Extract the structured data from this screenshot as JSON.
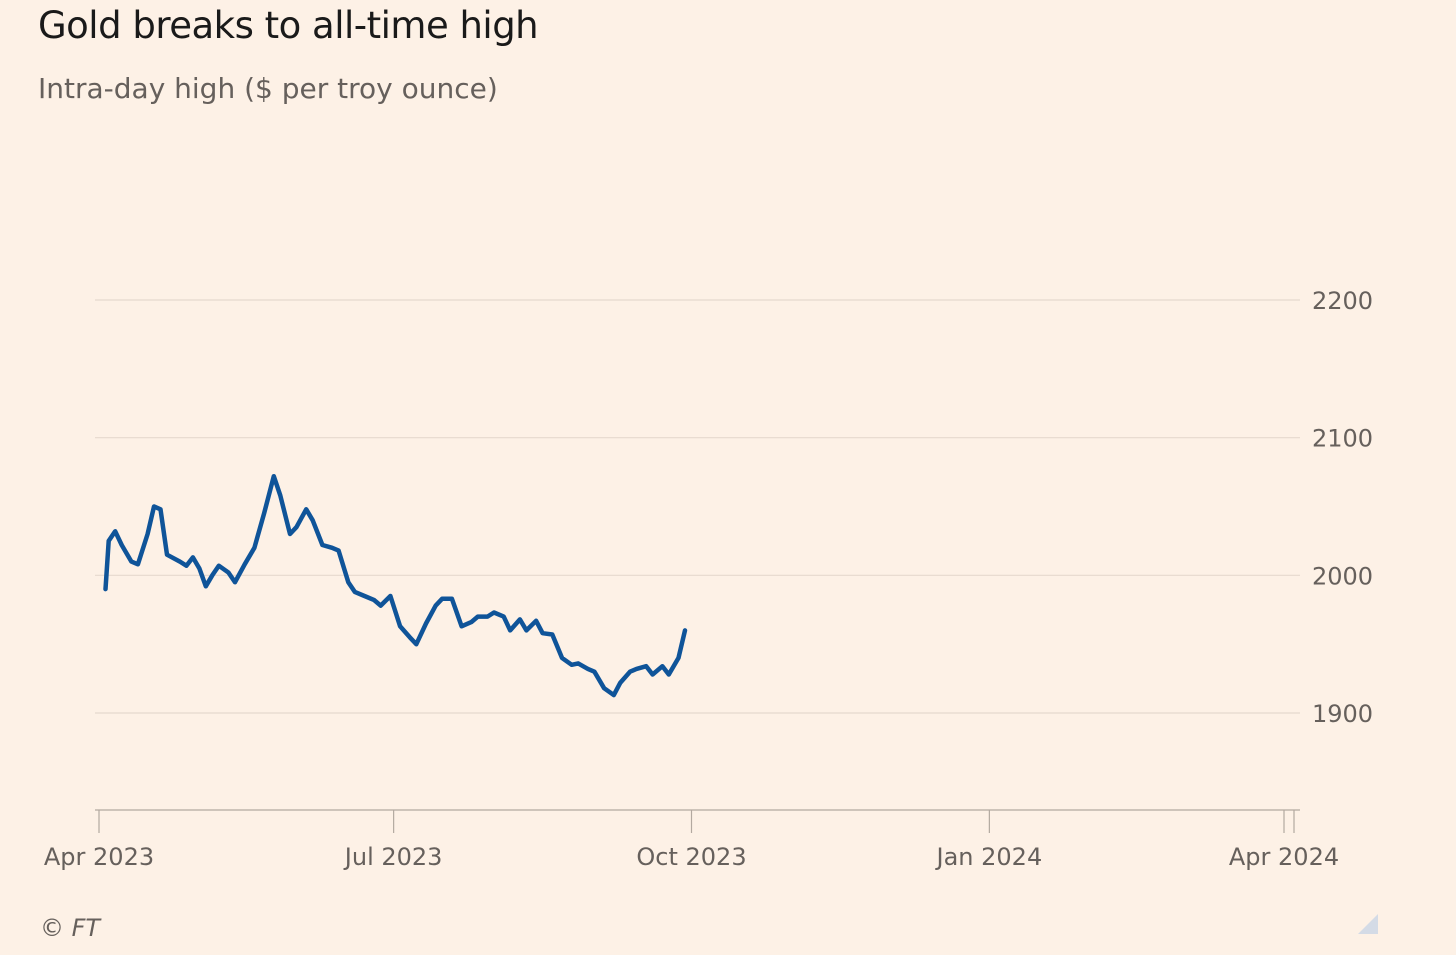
{
  "header": {
    "title": "Gold breaks to all-time high",
    "subtitle": "Intra-day high ($ per troy ounce)"
  },
  "footer": {
    "source": "© FT",
    "icon": "resize-corner-icon"
  },
  "colors": {
    "background": "#fdf1e6",
    "line": "#0f5499",
    "grid": "#e6d9ce",
    "axis": "#b3a9a0",
    "text": "#66605c",
    "title": "#1a1a1a"
  },
  "chart_data": {
    "type": "line",
    "title": "Gold breaks to all-time high",
    "subtitle": "Intra-day high ($ per troy ounce)",
    "xlabel": "",
    "ylabel": "",
    "ylim": [
      1830,
      2295
    ],
    "grid": true,
    "y_axis_side": "right",
    "yticks": [
      1900,
      2000,
      2100,
      2200
    ],
    "ytick_labels": [
      "1900",
      "2000",
      "2100",
      "2200"
    ],
    "xticks": [
      {
        "date": "2023-04-01",
        "label": "Apr 2023"
      },
      {
        "date": "2023-07-01",
        "label": "Jul 2023"
      },
      {
        "date": "2023-10-01",
        "label": "Oct 2023"
      },
      {
        "date": "2024-01-01",
        "label": "Jan 2024"
      },
      {
        "date": "2024-04-01",
        "label": "Apr 2024"
      }
    ],
    "series": [
      {
        "name": "",
        "color": "#0f5499",
        "points": [
          [
            "2023-04-03",
            1990
          ],
          [
            "2023-04-04",
            2025
          ],
          [
            "2023-04-06",
            2032
          ],
          [
            "2023-04-08",
            2022
          ],
          [
            "2023-04-11",
            2010
          ],
          [
            "2023-04-13",
            2008
          ],
          [
            "2023-04-16",
            2030
          ],
          [
            "2023-04-18",
            2050
          ],
          [
            "2023-04-20",
            2048
          ],
          [
            "2023-04-22",
            2015
          ],
          [
            "2023-04-26",
            2010
          ],
          [
            "2023-04-28",
            2007
          ],
          [
            "2023-04-30",
            2013
          ],
          [
            "2023-05-02",
            2005
          ],
          [
            "2023-05-04",
            1992
          ],
          [
            "2023-05-06",
            2000
          ],
          [
            "2023-05-08",
            2007
          ],
          [
            "2023-05-11",
            2002
          ],
          [
            "2023-05-13",
            1995
          ],
          [
            "2023-05-16",
            2008
          ],
          [
            "2023-05-19",
            2020
          ],
          [
            "2023-05-22",
            2045
          ],
          [
            "2023-05-25",
            2072
          ],
          [
            "2023-05-27",
            2058
          ],
          [
            "2023-05-30",
            2030
          ],
          [
            "2023-06-01",
            2035
          ],
          [
            "2023-06-04",
            2048
          ],
          [
            "2023-06-06",
            2040
          ],
          [
            "2023-06-09",
            2022
          ],
          [
            "2023-06-12",
            2020
          ],
          [
            "2023-06-14",
            2018
          ],
          [
            "2023-06-17",
            1995
          ],
          [
            "2023-06-19",
            1988
          ],
          [
            "2023-06-22",
            1985
          ],
          [
            "2023-06-25",
            1982
          ],
          [
            "2023-06-27",
            1978
          ],
          [
            "2023-06-30",
            1985
          ],
          [
            "2023-07-03",
            1963
          ],
          [
            "2023-07-06",
            1955
          ],
          [
            "2023-07-08",
            1950
          ],
          [
            "2023-07-11",
            1965
          ],
          [
            "2023-07-14",
            1978
          ],
          [
            "2023-07-16",
            1983
          ],
          [
            "2023-07-19",
            1983
          ],
          [
            "2023-07-22",
            1963
          ],
          [
            "2023-07-25",
            1966
          ],
          [
            "2023-07-27",
            1970
          ],
          [
            "2023-07-30",
            1970
          ],
          [
            "2023-08-01",
            1973
          ],
          [
            "2023-08-04",
            1970
          ],
          [
            "2023-08-06",
            1960
          ],
          [
            "2023-08-09",
            1968
          ],
          [
            "2023-08-11",
            1960
          ],
          [
            "2023-08-14",
            1967
          ],
          [
            "2023-08-16",
            1958
          ],
          [
            "2023-08-19",
            1957
          ],
          [
            "2023-08-22",
            1940
          ],
          [
            "2023-08-25",
            1935
          ],
          [
            "2023-08-27",
            1936
          ],
          [
            "2023-08-30",
            1932
          ],
          [
            "2023-09-01",
            1930
          ],
          [
            "2023-09-04",
            1918
          ],
          [
            "2023-09-07",
            1913
          ],
          [
            "2023-09-09",
            1922
          ],
          [
            "2023-09-12",
            1930
          ],
          [
            "2023-09-14",
            1932
          ],
          [
            "2023-09-17",
            1934
          ],
          [
            "2023-09-19",
            1928
          ],
          [
            "2023-09-22",
            1934
          ],
          [
            "2023-09-24",
            1928
          ],
          [
            "2023-09-27",
            1940
          ],
          [
            "2023-09-29",
            1960
          ]
        ]
      }
    ]
  }
}
